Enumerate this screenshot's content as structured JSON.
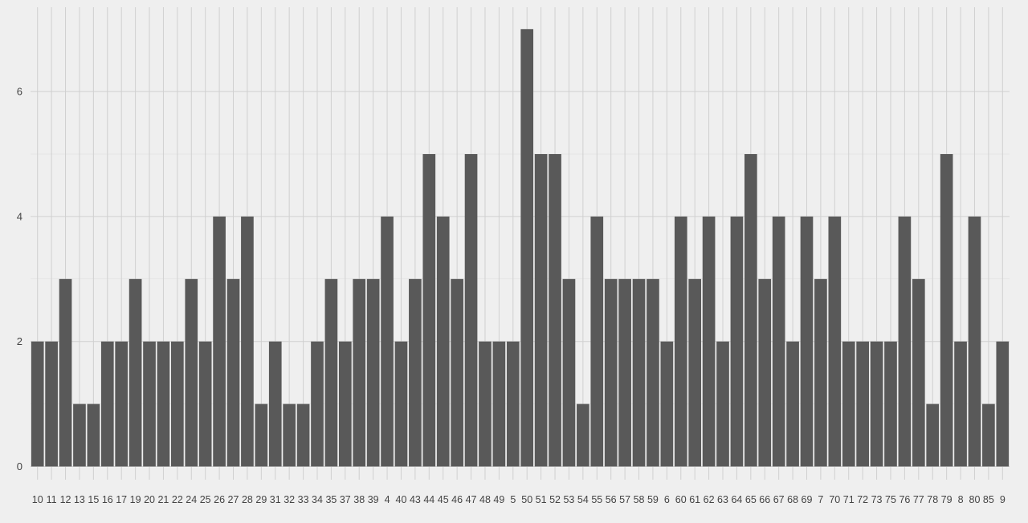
{
  "chart_data": {
    "type": "bar",
    "title": "",
    "xlabel": "",
    "ylabel": "",
    "categories": [
      "10",
      "11",
      "12",
      "13",
      "15",
      "16",
      "17",
      "19",
      "20",
      "21",
      "22",
      "24",
      "25",
      "26",
      "27",
      "28",
      "29",
      "31",
      "32",
      "33",
      "34",
      "35",
      "37",
      "38",
      "39",
      "4",
      "40",
      "43",
      "44",
      "45",
      "46",
      "47",
      "48",
      "49",
      "5",
      "50",
      "51",
      "52",
      "53",
      "54",
      "55",
      "56",
      "57",
      "58",
      "59",
      "6",
      "60",
      "61",
      "62",
      "63",
      "64",
      "65",
      "66",
      "67",
      "68",
      "69",
      "7",
      "70",
      "71",
      "72",
      "73",
      "75",
      "76",
      "77",
      "78",
      "79",
      "8",
      "80",
      "85",
      "9"
    ],
    "values": [
      2,
      2,
      3,
      1,
      1,
      2,
      2,
      3,
      2,
      2,
      2,
      3,
      2,
      4,
      3,
      4,
      1,
      2,
      1,
      1,
      2,
      3,
      2,
      3,
      3,
      4,
      2,
      3,
      5,
      4,
      3,
      5,
      2,
      2,
      2,
      7,
      5,
      5,
      3,
      1,
      4,
      3,
      3,
      3,
      3,
      2,
      4,
      3,
      4,
      2,
      4,
      5,
      3,
      4,
      2,
      4,
      3,
      4,
      2,
      2,
      2,
      2,
      4,
      3,
      1,
      5,
      2,
      4,
      1,
      2
    ],
    "yticks": [
      0,
      2,
      4,
      6
    ],
    "ylim": [
      0,
      7.35
    ],
    "grid": true,
    "legend": "none",
    "bar_color": "#595959",
    "background_color": "#efefef",
    "grid_color": "#d0d0d0"
  }
}
